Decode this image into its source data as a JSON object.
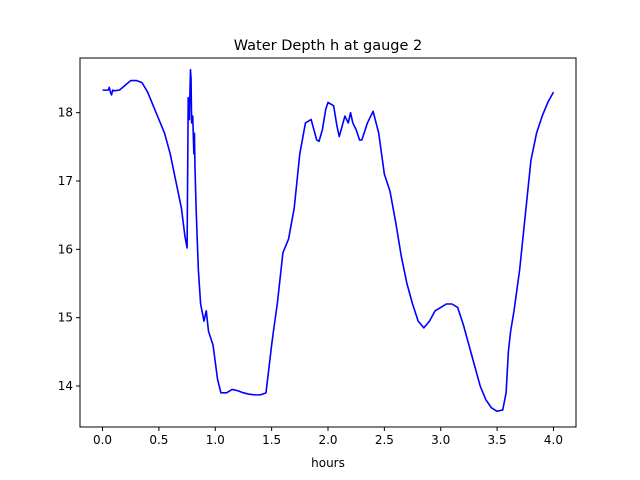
{
  "chart_data": {
    "type": "line",
    "title": "Water Depth h at gauge 2",
    "xlabel": "hours",
    "ylabel": "",
    "xlim": [
      -0.2,
      4.2
    ],
    "ylim": [
      13.4,
      18.8
    ],
    "xticks": [
      0.0,
      0.5,
      1.0,
      1.5,
      2.0,
      2.5,
      3.0,
      3.5,
      4.0
    ],
    "xtick_labels": [
      "0.0",
      "0.5",
      "1.0",
      "1.5",
      "2.0",
      "2.5",
      "3.0",
      "3.5",
      "4.0"
    ],
    "yticks": [
      14,
      15,
      16,
      17,
      18
    ],
    "ytick_labels": [
      "14",
      "15",
      "16",
      "17",
      "18"
    ],
    "grid": false,
    "line_color": "#0000ff",
    "series": [
      {
        "x": [
          0.0,
          0.05,
          0.06,
          0.07,
          0.08,
          0.09,
          0.1,
          0.15,
          0.2,
          0.25,
          0.3,
          0.35,
          0.4,
          0.45,
          0.5,
          0.55,
          0.6,
          0.65,
          0.7,
          0.73,
          0.75,
          0.76,
          0.77,
          0.78,
          0.785,
          0.79,
          0.8,
          0.81,
          0.815,
          0.82,
          0.83,
          0.85,
          0.87,
          0.9,
          0.92,
          0.94,
          0.96,
          0.98,
          1.0,
          1.02,
          1.05,
          1.1,
          1.15,
          1.2,
          1.25,
          1.3,
          1.35,
          1.4,
          1.45,
          1.5,
          1.52,
          1.55,
          1.6,
          1.65,
          1.7,
          1.75,
          1.8,
          1.85,
          1.9,
          1.92,
          1.95,
          1.98,
          2.0,
          2.05,
          2.08,
          2.1,
          2.15,
          2.18,
          2.2,
          2.22,
          2.25,
          2.28,
          2.3,
          2.35,
          2.4,
          2.45,
          2.5,
          2.55,
          2.6,
          2.65,
          2.7,
          2.75,
          2.8,
          2.85,
          2.9,
          2.95,
          3.0,
          3.05,
          3.1,
          3.15,
          3.2,
          3.25,
          3.3,
          3.35,
          3.4,
          3.45,
          3.5,
          3.55,
          3.58,
          3.6,
          3.62,
          3.65,
          3.7,
          3.75,
          3.8,
          3.85,
          3.9,
          3.95,
          4.0
        ],
        "y": [
          18.33,
          18.33,
          18.37,
          18.3,
          18.26,
          18.33,
          18.32,
          18.33,
          18.4,
          18.47,
          18.47,
          18.44,
          18.3,
          18.1,
          17.9,
          17.7,
          17.4,
          17.0,
          16.6,
          16.2,
          16.02,
          18.22,
          17.9,
          18.63,
          18.5,
          17.85,
          17.95,
          17.4,
          17.7,
          17.2,
          16.6,
          15.7,
          15.2,
          14.95,
          15.1,
          14.8,
          14.7,
          14.6,
          14.35,
          14.1,
          13.9,
          13.9,
          13.95,
          13.93,
          13.9,
          13.88,
          13.87,
          13.87,
          13.9,
          14.6,
          14.85,
          15.2,
          15.95,
          16.15,
          16.6,
          17.4,
          17.85,
          17.9,
          17.6,
          17.58,
          17.75,
          18.05,
          18.15,
          18.1,
          17.8,
          17.65,
          17.95,
          17.85,
          18.0,
          17.85,
          17.75,
          17.6,
          17.6,
          17.85,
          18.02,
          17.7,
          17.1,
          16.85,
          16.4,
          15.9,
          15.5,
          15.2,
          14.95,
          14.85,
          14.95,
          15.1,
          15.15,
          15.2,
          15.2,
          15.15,
          14.9,
          14.6,
          14.3,
          14.0,
          13.8,
          13.68,
          13.63,
          13.65,
          13.9,
          14.5,
          14.8,
          15.1,
          15.7,
          16.5,
          17.3,
          17.7,
          17.95,
          18.15,
          18.3
        ]
      }
    ]
  }
}
